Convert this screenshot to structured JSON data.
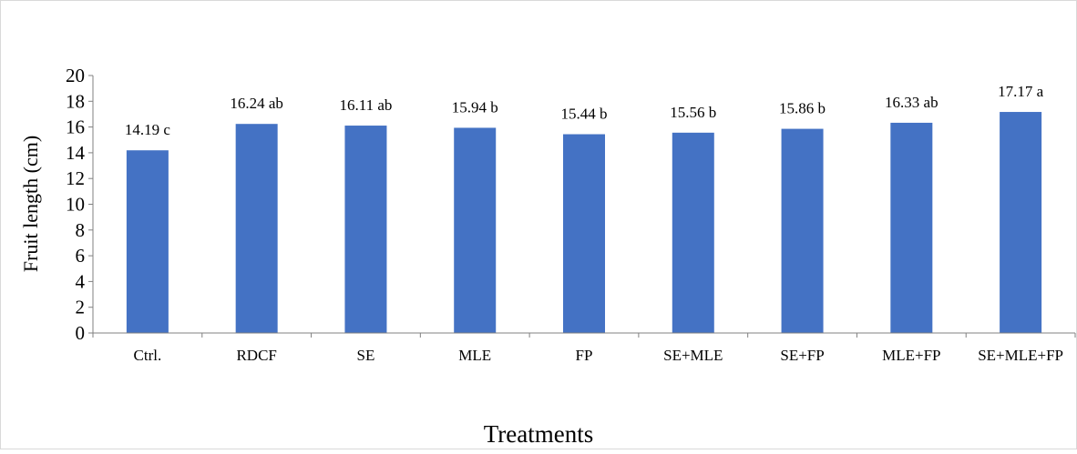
{
  "chart_data": {
    "type": "bar",
    "title": "",
    "xlabel": "Treatments",
    "ylabel": "Fruit length (cm)",
    "ylim": [
      0,
      20
    ],
    "yticks": [
      0,
      2,
      4,
      6,
      8,
      10,
      12,
      14,
      16,
      18,
      20
    ],
    "categories": [
      "Ctrl.",
      "RDCF",
      "SE",
      "MLE",
      "FP",
      "SE+MLE",
      "SE+FP",
      "MLE+FP",
      "SE+MLE+FP"
    ],
    "values": [
      14.19,
      16.24,
      16.11,
      15.94,
      15.44,
      15.56,
      15.86,
      16.33,
      17.17
    ],
    "data_labels": [
      "14.19 c",
      "16.24 ab",
      "16.11 ab",
      "15.94 b",
      "15.44 b",
      "15.56 b",
      "15.86 b",
      "16.33 ab",
      "17.17 a"
    ],
    "bar_color": "#4472C4",
    "grid": false,
    "legend": "none"
  }
}
